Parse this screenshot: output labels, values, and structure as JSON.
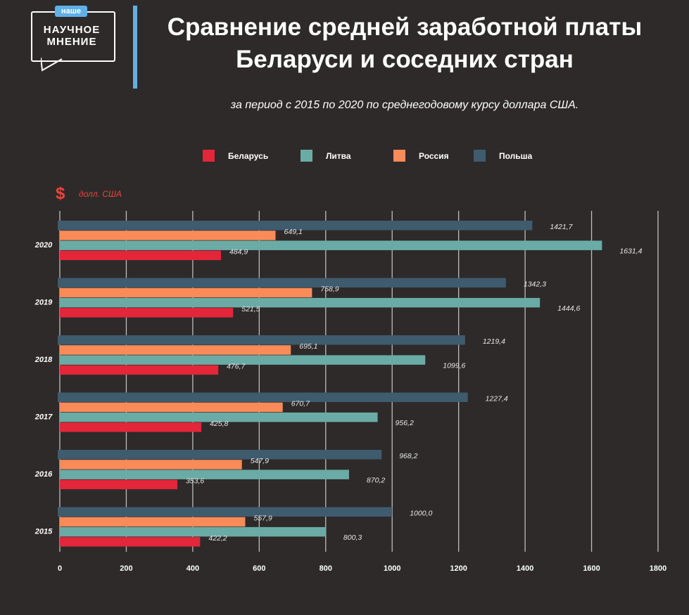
{
  "logo": {
    "tag": "наше",
    "text": "НАУЧНОЕ МНЕНИЕ"
  },
  "title": "Сравнение средней заработной платы Беларуси и соседних стран",
  "subtitle": "за период с 2015 по 2020 по среднегодовому курсу доллара США.",
  "chart_data": {
    "type": "bar",
    "orientation": "horizontal",
    "title": "Сравнение средней заработной платы Беларуси и соседних стран",
    "subtitle": "за период с 2015 по 2020 по среднегодовому курсу доллара США.",
    "unit_symbol": "$",
    "xlabel": "долл. США",
    "ylabel": "",
    "xlim": [
      0,
      1800
    ],
    "xticks": [
      0,
      200,
      400,
      600,
      800,
      1000,
      1200,
      1400,
      1600,
      1800
    ],
    "grid": true,
    "legend_position": "top",
    "categories": [
      "2020",
      "2019",
      "2018",
      "2017",
      "2016",
      "2015"
    ],
    "series": [
      {
        "name": "Польша",
        "color": "#3f5b6e",
        "values": [
          1421.7,
          1342.3,
          1219.4,
          1227.4,
          968.2,
          1000.0
        ],
        "labels": [
          "1421,7",
          "1342,3",
          "1219,4",
          "1227,4",
          "968,2",
          "1000,0"
        ]
      },
      {
        "name": "Россия",
        "color": "#f98b58",
        "values": [
          649.1,
          758.9,
          695.1,
          670.7,
          547.9,
          557.9
        ],
        "labels": [
          "649,1",
          "758,9",
          "695,1",
          "670,7",
          "547,9",
          "557,9"
        ]
      },
      {
        "name": "Литва",
        "color": "#6aaba5",
        "values": [
          1631.4,
          1444.6,
          1099.6,
          956.2,
          870.2,
          800.3
        ],
        "labels": [
          "1631,4",
          "1444,6",
          "1099,6",
          "956,2",
          "870,2",
          "800,3"
        ]
      },
      {
        "name": "Беларусь",
        "color": "#e3263a",
        "values": [
          484.9,
          521.5,
          476.7,
          425.8,
          353.6,
          422.2
        ],
        "labels": [
          "484,9",
          "521,5",
          "476,7",
          "425,8",
          "353,6",
          "422,2"
        ]
      }
    ],
    "legend_order": [
      "Беларусь",
      "Литва",
      "Россия",
      "Польша"
    ]
  }
}
